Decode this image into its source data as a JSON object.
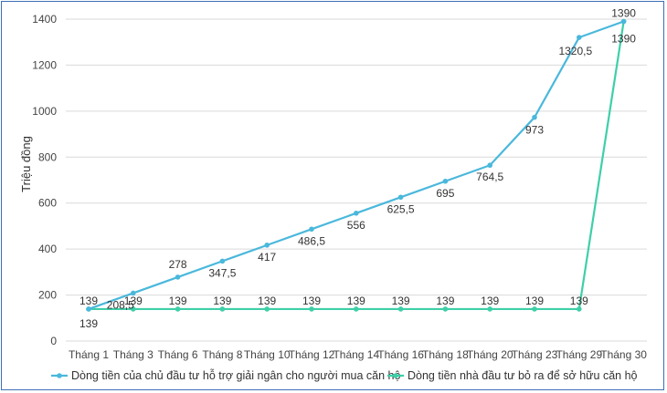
{
  "chart_data": {
    "type": "line",
    "title": "",
    "xlabel": "",
    "ylabel": "Triệu đồng",
    "ylim": [
      0,
      1400
    ],
    "yticks": [
      "0",
      "200",
      "400",
      "600",
      "800",
      "1000",
      "1200",
      "1400"
    ],
    "grid": true,
    "legend_position": "bottom",
    "categories": [
      "Tháng 1",
      "Tháng 3",
      "Tháng 6",
      "Tháng 8",
      "Tháng 10",
      "Tháng 12",
      "Tháng 14",
      "Tháng 16",
      "Tháng 18",
      "Tháng 20",
      "Tháng 23",
      "Tháng 29",
      "Tháng 30"
    ],
    "series": [
      {
        "name": "Dòng tiền của chủ đầu tư hỗ trợ giải ngân cho người mua căn hộ",
        "color": "#4ab8dc",
        "values": [
          139,
          208.5,
          278,
          347.5,
          417,
          486.5,
          556,
          625.5,
          695,
          764.5,
          973,
          1320.5,
          1390
        ],
        "labels": [
          "139",
          "208,5",
          "278",
          "347,5",
          "417",
          "486,5",
          "556",
          "625,5",
          "695",
          "764,5",
          "973",
          "1320,5",
          "1390"
        ]
      },
      {
        "name": "Dòng tiền nhà đầu tư bỏ ra để sở hữu căn hộ",
        "color": "#3ecfa8",
        "values": [
          139,
          139,
          139,
          139,
          139,
          139,
          139,
          139,
          139,
          139,
          139,
          139,
          1390
        ],
        "labels": [
          "139",
          "139",
          "139",
          "139",
          "139",
          "139",
          "139",
          "139",
          "139",
          "139",
          "139",
          "139",
          "1390"
        ]
      }
    ]
  }
}
